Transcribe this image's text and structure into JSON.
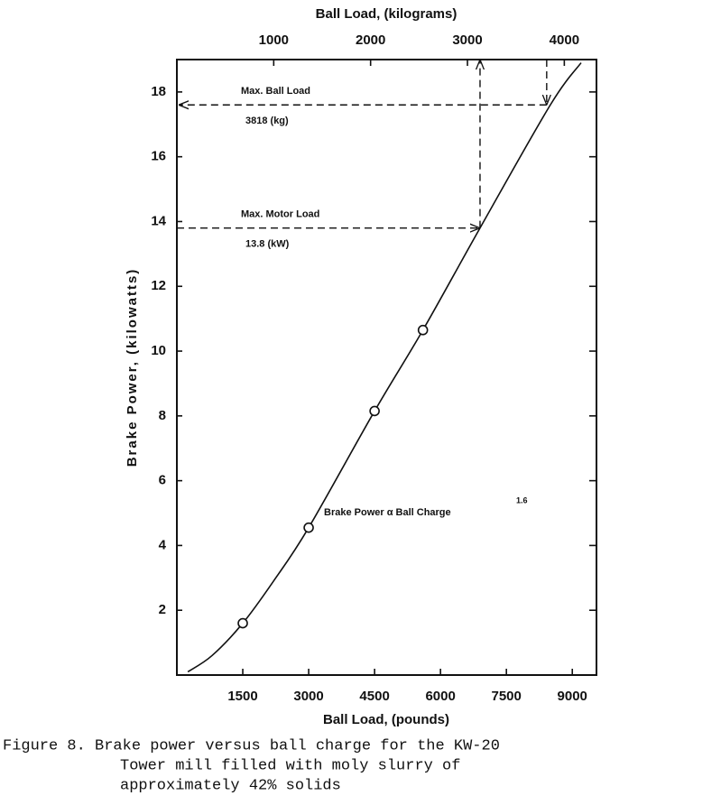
{
  "chart_data": {
    "type": "line",
    "x2_label": "Ball Load, (kilograms)",
    "xlabel": "Ball Load, (pounds)",
    "ylabel": "Brake Power, (kilowatts)",
    "xlim": [
      0,
      9550
    ],
    "xticks": [
      1500,
      3000,
      4500,
      6000,
      7500,
      9000
    ],
    "x2lim": [
      0,
      4332
    ],
    "x2ticks": [
      1000,
      2000,
      3000,
      4000
    ],
    "ylim": [
      0,
      19
    ],
    "yticks": [
      2,
      4,
      6,
      8,
      10,
      12,
      14,
      16,
      18
    ],
    "color": "#111111",
    "curve": {
      "x": [
        250,
        800,
        1500,
        2200,
        3000,
        4500,
        5600,
        6900,
        8500,
        9200
      ],
      "y": [
        0.1,
        0.6,
        1.6,
        2.9,
        4.55,
        8.15,
        10.65,
        13.8,
        17.6,
        18.9
      ]
    },
    "points": {
      "x": [
        1500,
        3000,
        4500,
        5600
      ],
      "y": [
        1.6,
        4.55,
        8.15,
        10.65
      ]
    },
    "annotations": [
      {
        "text": "Max. Ball Load",
        "value_text": "3818 (kg)",
        "x": 8417,
        "y": 17.6
      },
      {
        "text": "Max. Motor Load",
        "value_text": "13.8 (kW)",
        "x": 6900,
        "y": 13.8
      }
    ],
    "relation": {
      "text": "Brake Power α Ball Charge",
      "exponent": "1.6"
    },
    "caption": [
      "Figure 8. Brake power versus ball charge for the KW-20",
      "Tower mill filled with moly slurry of",
      "approximately 42% solids"
    ]
  }
}
